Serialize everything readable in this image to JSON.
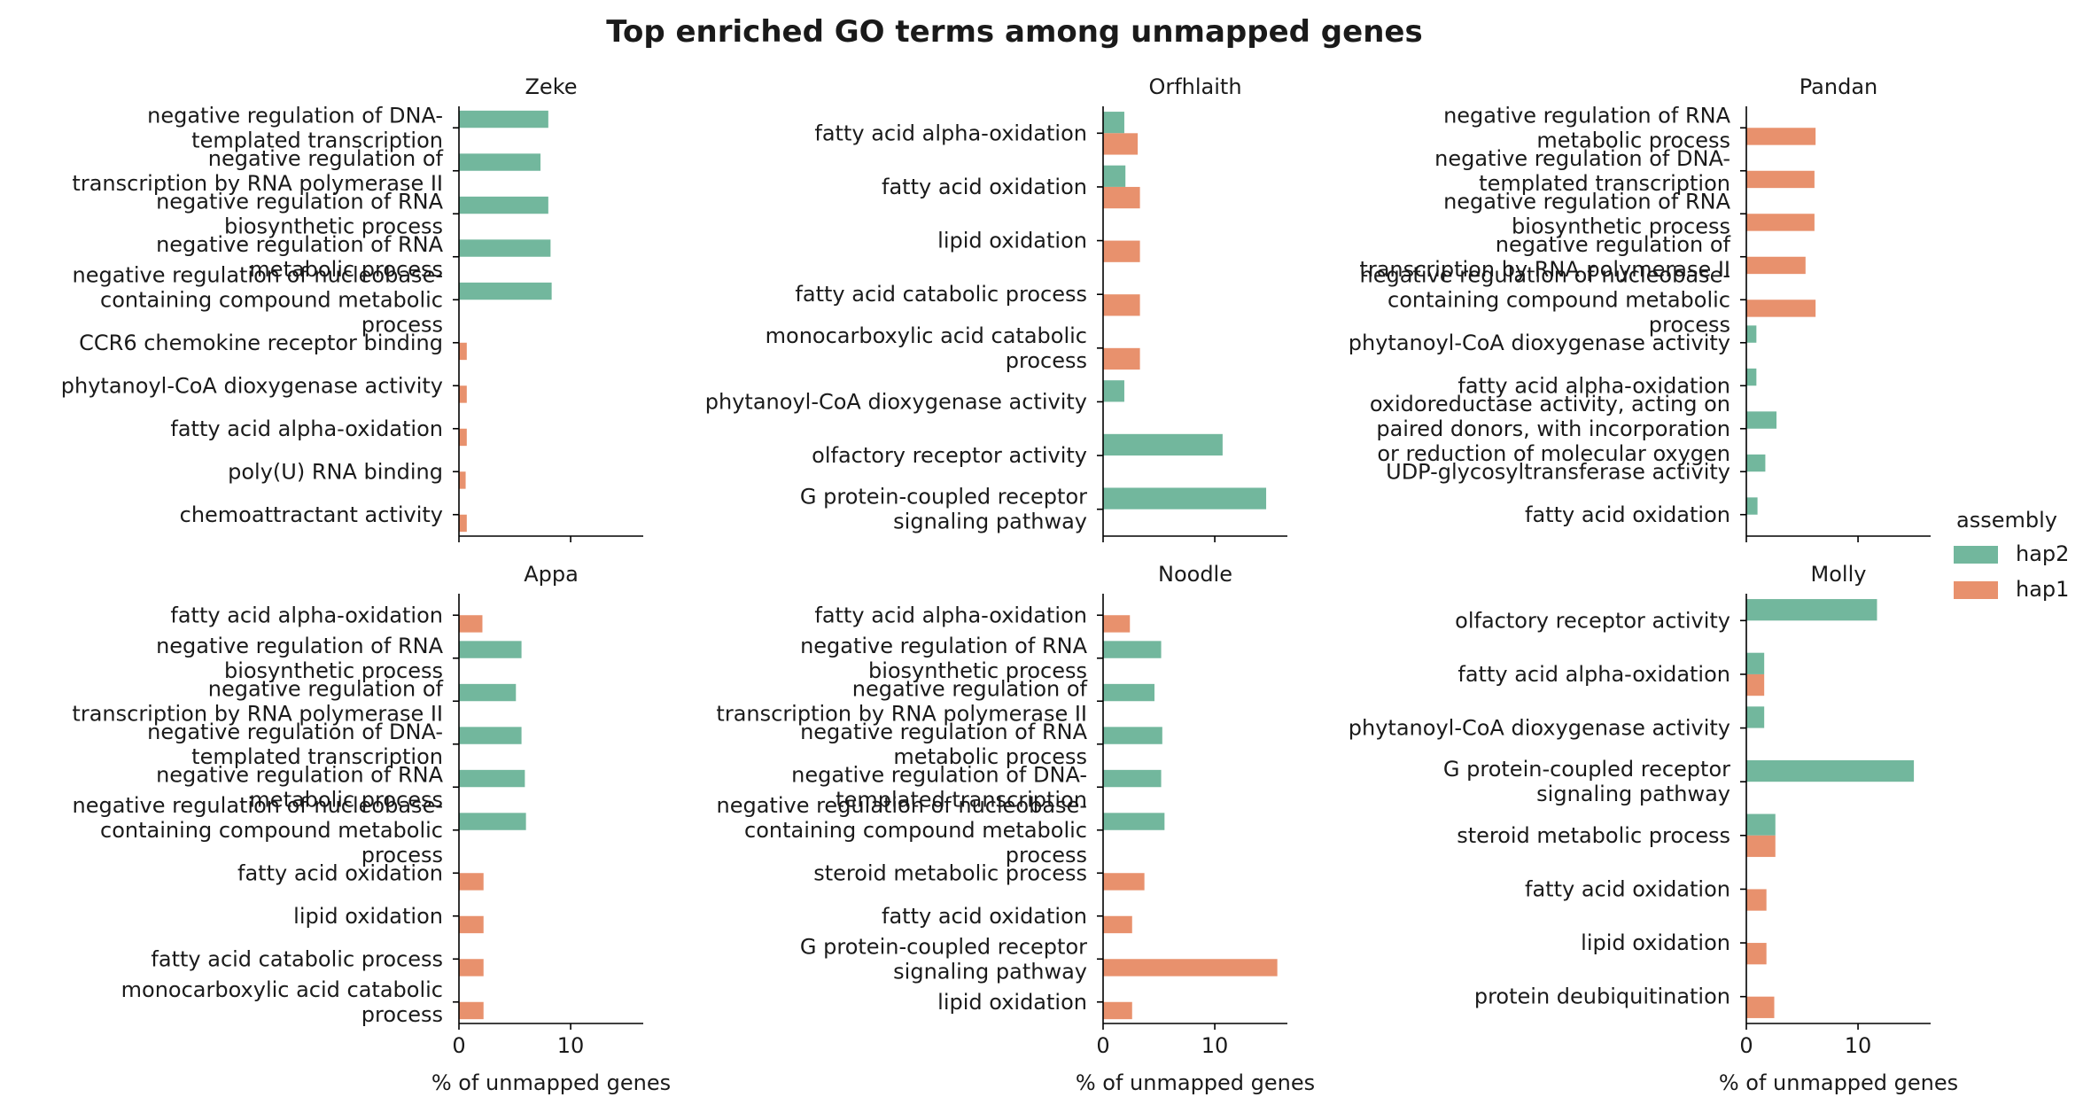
{
  "chart_data": {
    "type": "bar",
    "orientation": "horizontal",
    "title": "Top enriched GO terms among unmapped genes",
    "xlabel": "% of unmapped genes",
    "xlim": [
      0,
      16.5
    ],
    "xticks": [
      0,
      10
    ],
    "legend": {
      "title": "assembly",
      "position": "right",
      "entries": [
        {
          "name": "hap2",
          "color": "#72b79d"
        },
        {
          "name": "hap1",
          "color": "#e8916d"
        }
      ]
    },
    "panels": [
      {
        "name": "Zeke",
        "categories": [
          "negative regulation of DNA-\ntemplated transcription",
          "negative regulation of\ntranscription by RNA polymerase II",
          "negative regulation of RNA\nbiosynthetic process",
          "negative regulation of RNA\nmetabolic process",
          "negative regulation of nucleobase-\ncontaining compound metabolic\nprocess",
          "CCR6 chemokine receptor binding",
          "phytanoyl-CoA dioxygenase activity",
          "fatty acid alpha-oxidation",
          "poly(U) RNA binding",
          "chemoattractant activity"
        ],
        "series": [
          {
            "name": "hap2",
            "values": [
              8.0,
              7.3,
              8.0,
              8.2,
              8.3,
              null,
              null,
              null,
              null,
              null
            ]
          },
          {
            "name": "hap1",
            "values": [
              null,
              null,
              null,
              null,
              null,
              0.7,
              0.7,
              0.7,
              0.6,
              0.7
            ]
          }
        ]
      },
      {
        "name": "Orfhlaith",
        "categories": [
          "fatty acid alpha-oxidation",
          "fatty acid oxidation",
          "lipid oxidation",
          "fatty acid catabolic process",
          "monocarboxylic acid catabolic\nprocess",
          "phytanoyl-CoA dioxygenase activity",
          "olfactory receptor activity",
          "G protein-coupled receptor\nsignaling pathway"
        ],
        "series": [
          {
            "name": "hap2",
            "values": [
              1.9,
              2.0,
              null,
              null,
              null,
              1.9,
              10.7,
              14.6
            ]
          },
          {
            "name": "hap1",
            "values": [
              3.1,
              3.3,
              3.3,
              3.3,
              3.3,
              null,
              null,
              null
            ]
          }
        ]
      },
      {
        "name": "Pandan",
        "categories": [
          "negative regulation of RNA\nmetabolic process",
          "negative regulation of DNA-\ntemplated transcription",
          "negative regulation of RNA\nbiosynthetic process",
          "negative regulation of\ntranscription by RNA polymerase II",
          "negative regulation of nucleobase-\ncontaining compound metabolic\nprocess",
          "phytanoyl-CoA dioxygenase activity",
          "fatty acid alpha-oxidation",
          "oxidoreductase activity, acting on\npaired donors, with incorporation\nor reduction of molecular oxygen",
          "UDP-glycosyltransferase activity",
          "fatty acid oxidation"
        ],
        "series": [
          {
            "name": "hap2",
            "values": [
              null,
              null,
              null,
              null,
              null,
              0.9,
              0.9,
              2.7,
              1.7,
              1.0
            ]
          },
          {
            "name": "hap1",
            "values": [
              6.2,
              6.1,
              6.1,
              5.3,
              6.2,
              null,
              null,
              null,
              null,
              null
            ]
          }
        ]
      },
      {
        "name": "Appa",
        "categories": [
          "fatty acid alpha-oxidation",
          "negative regulation of RNA\nbiosynthetic process",
          "negative regulation of\ntranscription by RNA polymerase II",
          "negative regulation of DNA-\ntemplated transcription",
          "negative regulation of RNA\nmetabolic process",
          "negative regulation of nucleobase-\ncontaining compound metabolic\nprocess",
          "fatty acid oxidation",
          "lipid oxidation",
          "fatty acid catabolic process",
          "monocarboxylic acid catabolic\nprocess"
        ],
        "series": [
          {
            "name": "hap2",
            "values": [
              null,
              5.6,
              5.1,
              5.6,
              5.9,
              6.0,
              null,
              null,
              null,
              null
            ]
          },
          {
            "name": "hap1",
            "values": [
              2.1,
              null,
              null,
              null,
              null,
              null,
              2.2,
              2.2,
              2.2,
              2.2
            ]
          }
        ]
      },
      {
        "name": "Noodle",
        "categories": [
          "fatty acid alpha-oxidation",
          "negative regulation of RNA\nbiosynthetic process",
          "negative regulation of\ntranscription by RNA polymerase II",
          "negative regulation of RNA\nmetabolic process",
          "negative regulation of DNA-\ntemplated transcription",
          "negative regulation of nucleobase-\ncontaining compound metabolic\nprocess",
          "steroid metabolic process",
          "fatty acid oxidation",
          "G protein-coupled receptor\nsignaling pathway",
          "lipid oxidation"
        ],
        "series": [
          {
            "name": "hap2",
            "values": [
              null,
              5.2,
              4.6,
              5.3,
              5.2,
              5.5,
              null,
              null,
              null,
              null
            ]
          },
          {
            "name": "hap1",
            "values": [
              2.4,
              null,
              null,
              null,
              null,
              null,
              3.7,
              2.6,
              15.6,
              2.6
            ]
          }
        ]
      },
      {
        "name": "Molly",
        "categories": [
          "olfactory receptor activity",
          "fatty acid alpha-oxidation",
          "phytanoyl-CoA dioxygenase activity",
          "G protein-coupled receptor\nsignaling pathway",
          "steroid metabolic process",
          "fatty acid oxidation",
          "lipid oxidation",
          "protein deubiquitination"
        ],
        "series": [
          {
            "name": "hap2",
            "values": [
              11.7,
              1.6,
              1.6,
              15.0,
              2.6,
              null,
              null,
              null
            ]
          },
          {
            "name": "hap1",
            "values": [
              null,
              1.6,
              null,
              null,
              2.6,
              1.8,
              1.8,
              2.5
            ]
          }
        ]
      }
    ]
  }
}
